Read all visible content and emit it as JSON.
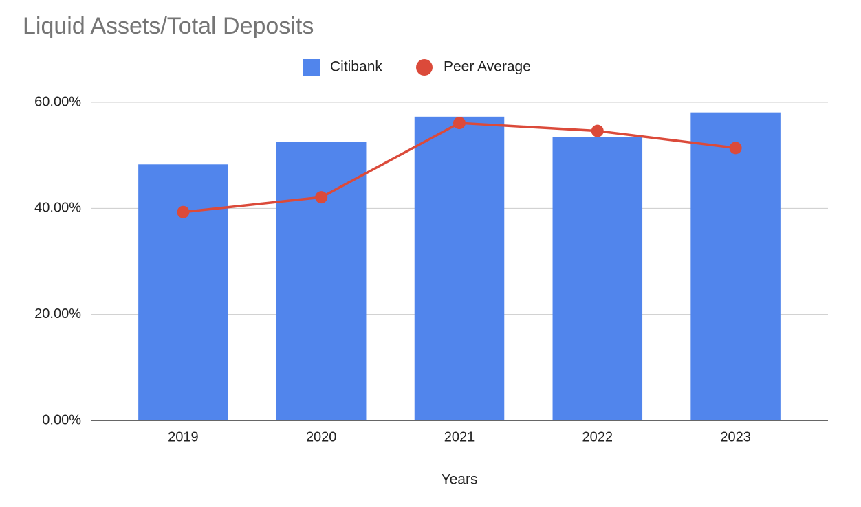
{
  "chart_data": {
    "type": "bar-line",
    "title": "Liquid Assets/Total Deposits",
    "x_label": "Years",
    "categories": [
      "2019",
      "2020",
      "2021",
      "2022",
      "2023"
    ],
    "series": [
      {
        "name": "Citibank",
        "type": "bar",
        "color": "#5185ec",
        "values": [
          48.3,
          52.6,
          57.3,
          53.5,
          58.1
        ]
      },
      {
        "name": "Peer Average",
        "type": "line",
        "color": "#db4a3a",
        "values": [
          39.3,
          42.1,
          56.1,
          54.6,
          51.4
        ]
      }
    ],
    "ylim": [
      0,
      60
    ],
    "yticks": [
      {
        "value": 0,
        "label": "0.00%"
      },
      {
        "value": 20,
        "label": "20.00%"
      },
      {
        "value": 40,
        "label": "40.00%"
      },
      {
        "value": 60,
        "label": "60.00%"
      }
    ],
    "grid": true,
    "legend": "top"
  }
}
